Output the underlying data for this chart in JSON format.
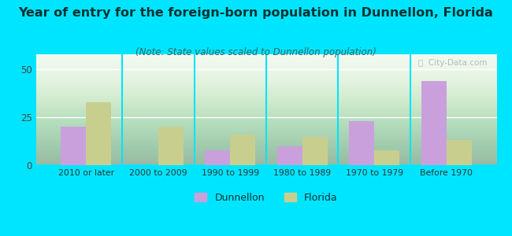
{
  "categories": [
    "2010 or later",
    "2000 to 2009",
    "1990 to 1999",
    "1980 to 1989",
    "1970 to 1979",
    "Before 1970"
  ],
  "dunnellon": [
    20,
    0,
    8,
    10,
    23,
    44
  ],
  "florida": [
    33,
    20,
    16,
    15,
    8,
    13
  ],
  "dunnellon_color": "#c9a0dc",
  "florida_color": "#c8cf8e",
  "title": "Year of entry for the foreign-born population in Dunnellon, Florida",
  "subtitle": "(Note: State values scaled to Dunnellon population)",
  "yticks": [
    0,
    25,
    50
  ],
  "ylim": [
    0,
    58
  ],
  "bg_color_fig": "#00e5ff",
  "grid_color": "#ffffff",
  "title_fontsize": 11.5,
  "subtitle_fontsize": 8.5,
  "legend_dunnellon": "Dunnellon",
  "legend_florida": "Florida",
  "bar_width": 0.35
}
